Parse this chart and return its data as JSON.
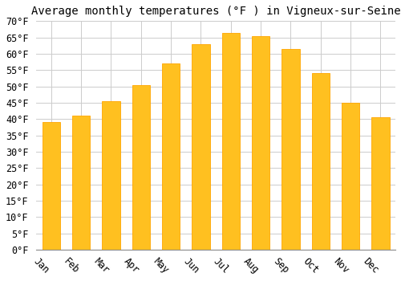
{
  "title": "Average monthly temperatures (°F ) in Vigneux-sur-Seine",
  "months": [
    "Jan",
    "Feb",
    "Mar",
    "Apr",
    "May",
    "Jun",
    "Jul",
    "Aug",
    "Sep",
    "Oct",
    "Nov",
    "Dec"
  ],
  "values": [
    39,
    41,
    45.5,
    50.5,
    57,
    63,
    66.5,
    65.5,
    61.5,
    54,
    45,
    40.5
  ],
  "bar_color_face": "#FFC020",
  "bar_color_edge": "#FFA500",
  "background_color": "#FFFFFF",
  "grid_color": "#CCCCCC",
  "ylim": [
    0,
    70
  ],
  "yticks": [
    0,
    5,
    10,
    15,
    20,
    25,
    30,
    35,
    40,
    45,
    50,
    55,
    60,
    65,
    70
  ],
  "title_fontsize": 10,
  "tick_fontsize": 8.5,
  "font_family": "monospace",
  "bar_width": 0.6,
  "xlabel_rotation": -45
}
